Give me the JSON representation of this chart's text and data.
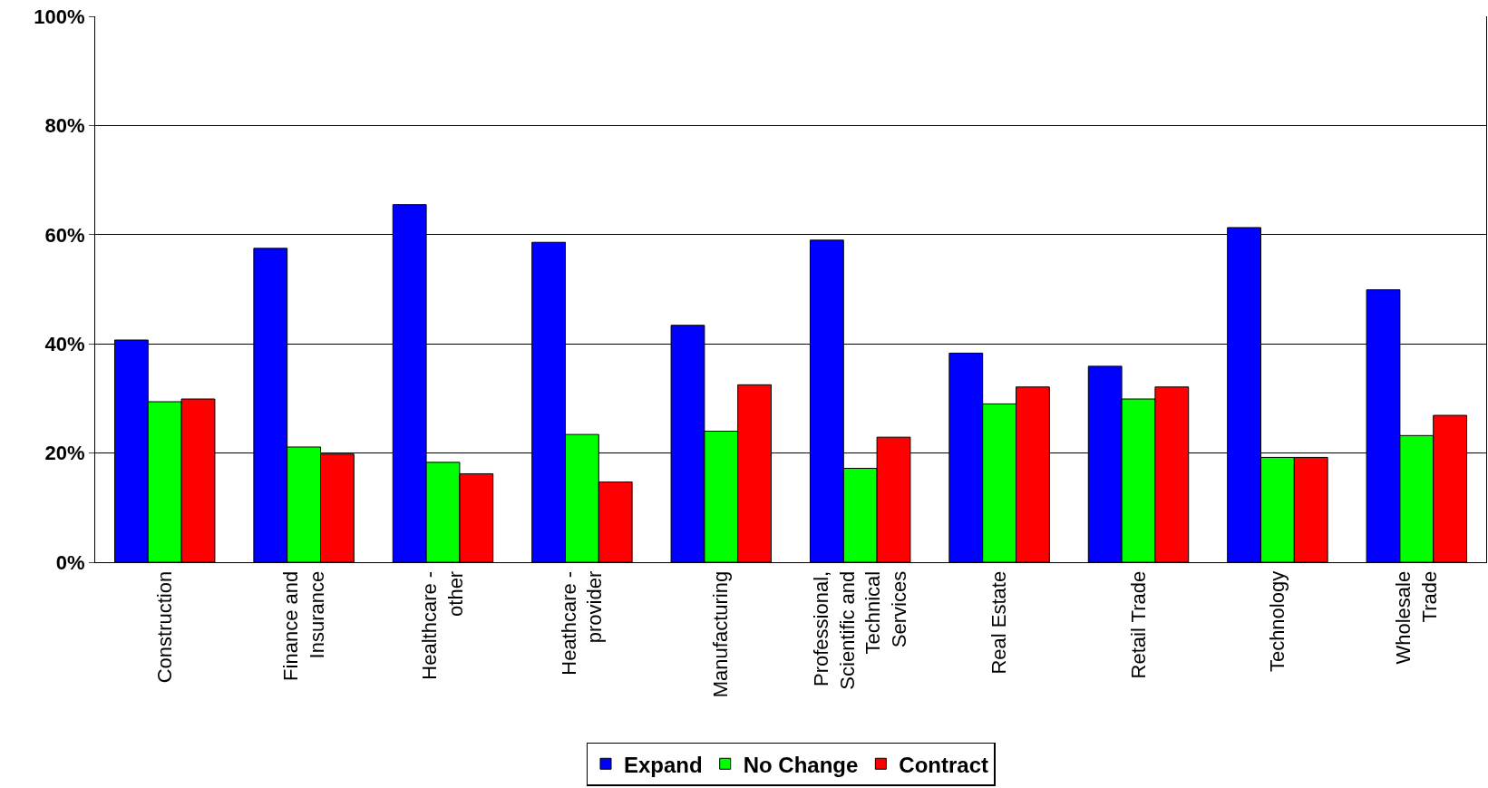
{
  "chart_data": {
    "type": "bar",
    "categories": [
      "Construction",
      "Finance and Insurance",
      "Healthcare - other",
      "Heathcare - provider",
      "Manufacturing",
      "Professional, Scientific and Technical Services",
      "Real Estate",
      "Retail Trade",
      "Technology",
      "Wholesale Trade"
    ],
    "series": [
      {
        "name": "Expand",
        "color": "#0000ff",
        "values": [
          40.7,
          57.5,
          65.5,
          58.6,
          43.4,
          59.0,
          38.3,
          35.9,
          61.3,
          49.9
        ]
      },
      {
        "name": "No Change",
        "color": "#00ff00",
        "values": [
          29.4,
          21.1,
          18.3,
          23.4,
          24.0,
          17.2,
          29.0,
          29.9,
          19.2,
          23.2
        ]
      },
      {
        "name": "Contract",
        "color": "#ff0000",
        "values": [
          29.9,
          19.8,
          16.2,
          14.7,
          32.5,
          22.9,
          32.1,
          32.1,
          19.2,
          26.9
        ]
      }
    ],
    "ylim": [
      0,
      100
    ],
    "yticks": [
      {
        "value": 0,
        "label": "0%"
      },
      {
        "value": 20,
        "label": "20%"
      },
      {
        "value": 40,
        "label": "40%"
      },
      {
        "value": 60,
        "label": "60%"
      },
      {
        "value": 80,
        "label": "80%"
      },
      {
        "value": 100,
        "label": "100%"
      }
    ],
    "grid": "y",
    "legend": "bottom"
  }
}
